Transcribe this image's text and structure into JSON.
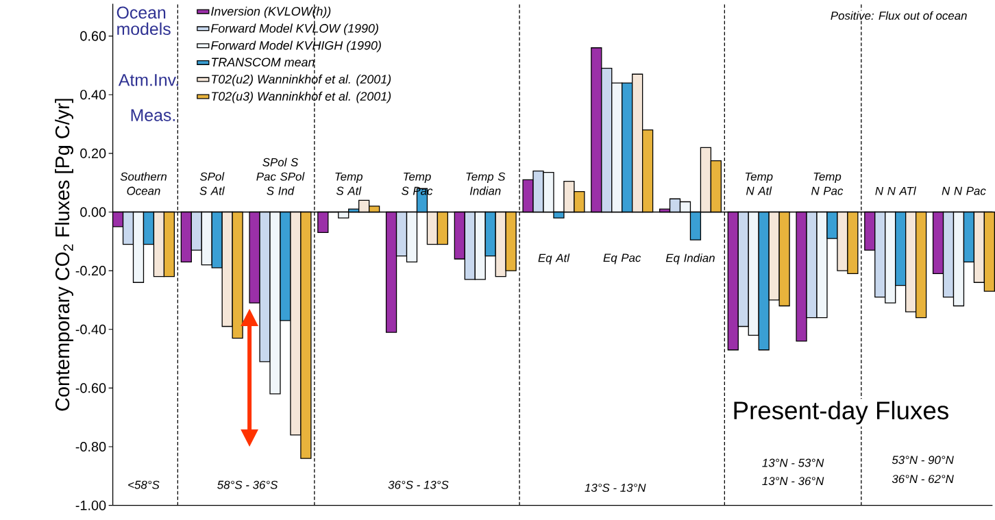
{
  "chart_data": {
    "type": "bar",
    "title": "Present-day Fluxes",
    "ylabel": "Contemporary CO$_{2}$ Fluxes [Pg C/yr]",
    "categories": [
      "Southern Ocean",
      "SPol S Atl",
      "SPol S Pac SPol S Ind",
      "Temp S Atl",
      "Temp S Pac",
      "Temp S Indian",
      "Eq Atl",
      "Eq Pac",
      "Eq Indian",
      "Temp N Atl",
      "Temp N Pac",
      "N N ATl",
      "N N Pac"
    ],
    "series": [
      {
        "name": "Inversion (KVLOW(h))",
        "color": "#9b30a8",
        "values": [
          -0.05,
          -0.17,
          -0.31,
          -0.07,
          -0.41,
          -0.16,
          0.11,
          0.56,
          0.01,
          -0.47,
          -0.44,
          -0.13,
          -0.21
        ]
      },
      {
        "name": "Forward Model KVLOW (1990)",
        "color": "#c8d8ee",
        "values": [
          -0.11,
          -0.13,
          -0.51,
          0.0,
          -0.15,
          -0.23,
          0.14,
          0.49,
          0.045,
          -0.39,
          -0.36,
          -0.29,
          -0.29
        ]
      },
      {
        "name": "Forward Model KVHIGH (1990)",
        "color": "#f0f6fa",
        "values": [
          -0.24,
          -0.18,
          -0.62,
          -0.02,
          -0.17,
          -0.23,
          0.135,
          0.44,
          0.035,
          -0.42,
          -0.36,
          -0.31,
          -0.32
        ]
      },
      {
        "name": "TRANSCOM mean",
        "color": "#3a9fd4",
        "values": [
          -0.11,
          -0.19,
          -0.37,
          0.01,
          0.08,
          -0.15,
          -0.02,
          0.44,
          -0.095,
          -0.47,
          -0.09,
          -0.25,
          -0.17
        ]
      },
      {
        "name": "T02(u2)  Wanninkhof et al. (2001)",
        "color": "#f5e6d8",
        "values": [
          -0.22,
          -0.39,
          -0.76,
          0.04,
          -0.11,
          -0.22,
          0.105,
          0.47,
          0.22,
          -0.3,
          -0.2,
          -0.34,
          -0.24
        ]
      },
      {
        "name": "T02(u3)  Wanninkhof et al. (2001)",
        "color": "#e8b33c",
        "values": [
          -0.22,
          -0.43,
          -0.84,
          0.02,
          -0.11,
          -0.2,
          0.07,
          0.28,
          0.175,
          -0.32,
          -0.21,
          -0.36,
          -0.27
        ]
      }
    ],
    "ylim": [
      -1.0,
      0.71
    ],
    "yticks": [
      {
        "value": -1.0,
        "label": "-1.00"
      },
      {
        "value": -0.8,
        "label": "-0.80"
      },
      {
        "value": -0.6,
        "label": "-0.60"
      },
      {
        "value": -0.4,
        "label": "-0.40"
      },
      {
        "value": -0.2,
        "label": "-0.20"
      },
      {
        "value": 0,
        "label": "0.00"
      },
      {
        "value": 0.2,
        "label": "0.20"
      },
      {
        "value": 0.4,
        "label": "0.40"
      },
      {
        "value": 0.6,
        "label": "0.60"
      }
    ],
    "tick_labels": "y",
    "legend": "top left",
    "annotations": [
      "Positive: Flux out of ocean",
      "<58°S",
      "58°S - 36°S",
      "36°S - 13°S",
      "13°S - 13°N",
      "13°N - 53°N",
      "13°N - 36°N",
      "53°N - 90°N",
      "36°N - 62°N",
      "Ocean models",
      "Atm.Inv.",
      "Meas."
    ]
  }
}
